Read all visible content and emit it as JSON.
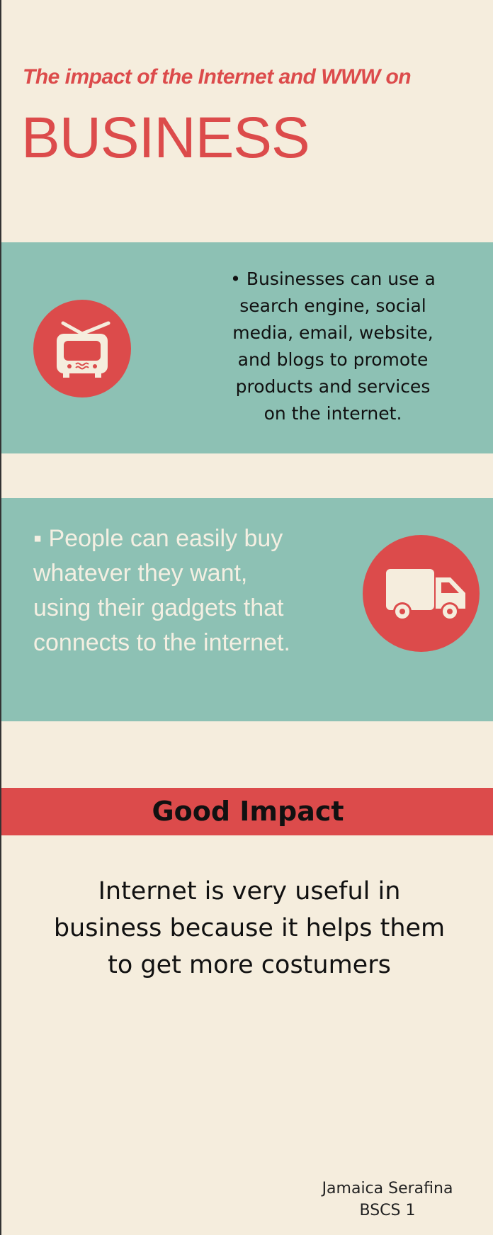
{
  "header": {
    "subtitle": "The impact of the Internet and WWW on",
    "title": "BUSINESS"
  },
  "sections": [
    {
      "icon": "television-icon",
      "text": "• Businesses can use a search engine, social media, email, website, and blogs to promote products and services on the internet."
    },
    {
      "icon": "delivery-truck-icon",
      "text": "▪ People can easily buy whatever they want, using their gadgets that connects to the internet."
    }
  ],
  "good_impact": {
    "heading": "Good Impact",
    "text": "Internet is very useful in business because it helps them to get more costumers"
  },
  "author": {
    "name": "Jamaica Serafina",
    "course": "BSCS 1"
  },
  "colors": {
    "background": "#f5eddd",
    "accent_red": "#dc4b4b",
    "band_teal": "#8dc1b4",
    "light_text": "#f4efe2"
  }
}
